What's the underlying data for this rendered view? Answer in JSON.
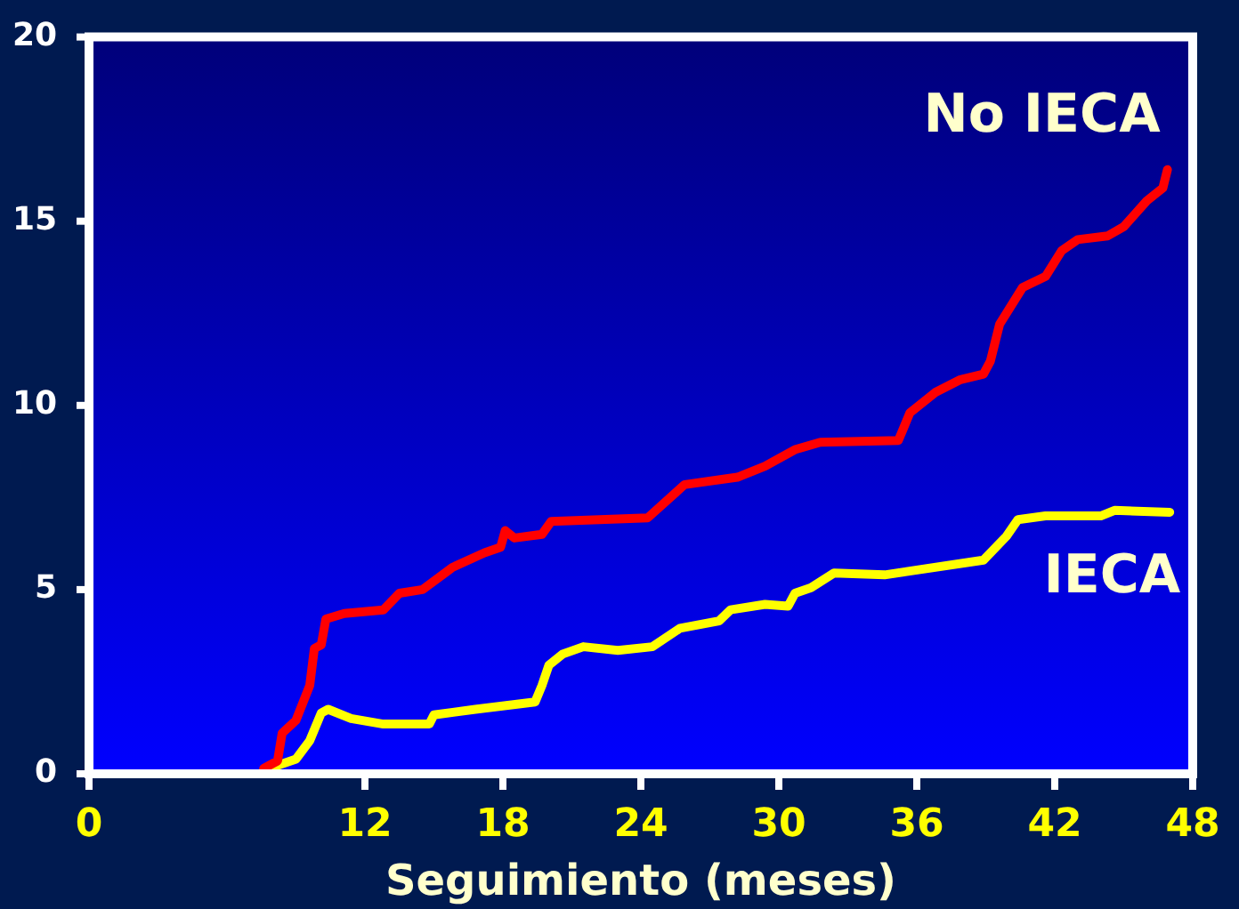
{
  "chart_data": {
    "type": "line",
    "xlabel": "Seguimiento (meses)",
    "xlim": [
      0,
      48
    ],
    "xticks": [
      0,
      12,
      18,
      24,
      30,
      36,
      42,
      48
    ],
    "ylim": [
      0,
      20
    ],
    "yticks": [
      0,
      5,
      10,
      15,
      20
    ],
    "grid": false,
    "legend": false,
    "marker": "none",
    "line_style": "solid",
    "series": [
      {
        "name": "No IECA",
        "color": "#ff0000",
        "x": [
          7.6,
          8.2,
          8.4,
          9.0,
          9.6,
          9.8,
          10.1,
          10.3,
          11.1,
          12.8,
          13.5,
          14.5,
          15.8,
          17.2,
          17.9,
          18.1,
          18.5,
          19.7,
          20.1,
          24.3,
          25.9,
          28.2,
          29.4,
          30.7,
          31.8,
          35.2,
          35.7,
          36.8,
          37.9,
          38.9,
          39.2,
          39.6,
          40.6,
          41.6,
          42.3,
          43.0,
          44.3,
          45.0,
          46.0,
          46.7,
          46.9
        ],
        "values": [
          0.15,
          0.35,
          1.1,
          1.45,
          2.4,
          3.4,
          3.5,
          4.2,
          4.35,
          4.45,
          4.9,
          5.0,
          5.6,
          6.0,
          6.15,
          6.6,
          6.4,
          6.5,
          6.85,
          6.95,
          7.85,
          8.05,
          8.35,
          8.8,
          9.0,
          9.05,
          9.8,
          10.35,
          10.7,
          10.85,
          11.2,
          12.2,
          13.2,
          13.5,
          14.2,
          14.5,
          14.6,
          14.85,
          15.55,
          15.9,
          16.4
        ]
      },
      {
        "name": "IECA",
        "color": "#ffff00",
        "x": [
          7.6,
          9.0,
          9.6,
          10.1,
          10.4,
          11.4,
          12.8,
          14.8,
          15.0,
          16.8,
          19.4,
          19.7,
          20.0,
          20.6,
          21.5,
          23.0,
          24.5,
          25.7,
          27.4,
          27.9,
          29.4,
          30.4,
          30.7,
          31.4,
          32.4,
          34.6,
          38.9,
          39.9,
          40.4,
          41.6,
          44.0,
          44.6,
          47.0
        ],
        "values": [
          0.1,
          0.4,
          0.9,
          1.65,
          1.75,
          1.5,
          1.35,
          1.35,
          1.6,
          1.75,
          1.95,
          2.4,
          2.95,
          3.25,
          3.45,
          3.35,
          3.45,
          3.95,
          4.15,
          4.45,
          4.6,
          4.55,
          4.9,
          5.05,
          5.45,
          5.4,
          5.8,
          6.45,
          6.9,
          7.0,
          7.0,
          7.15,
          7.1
        ]
      }
    ]
  }
}
